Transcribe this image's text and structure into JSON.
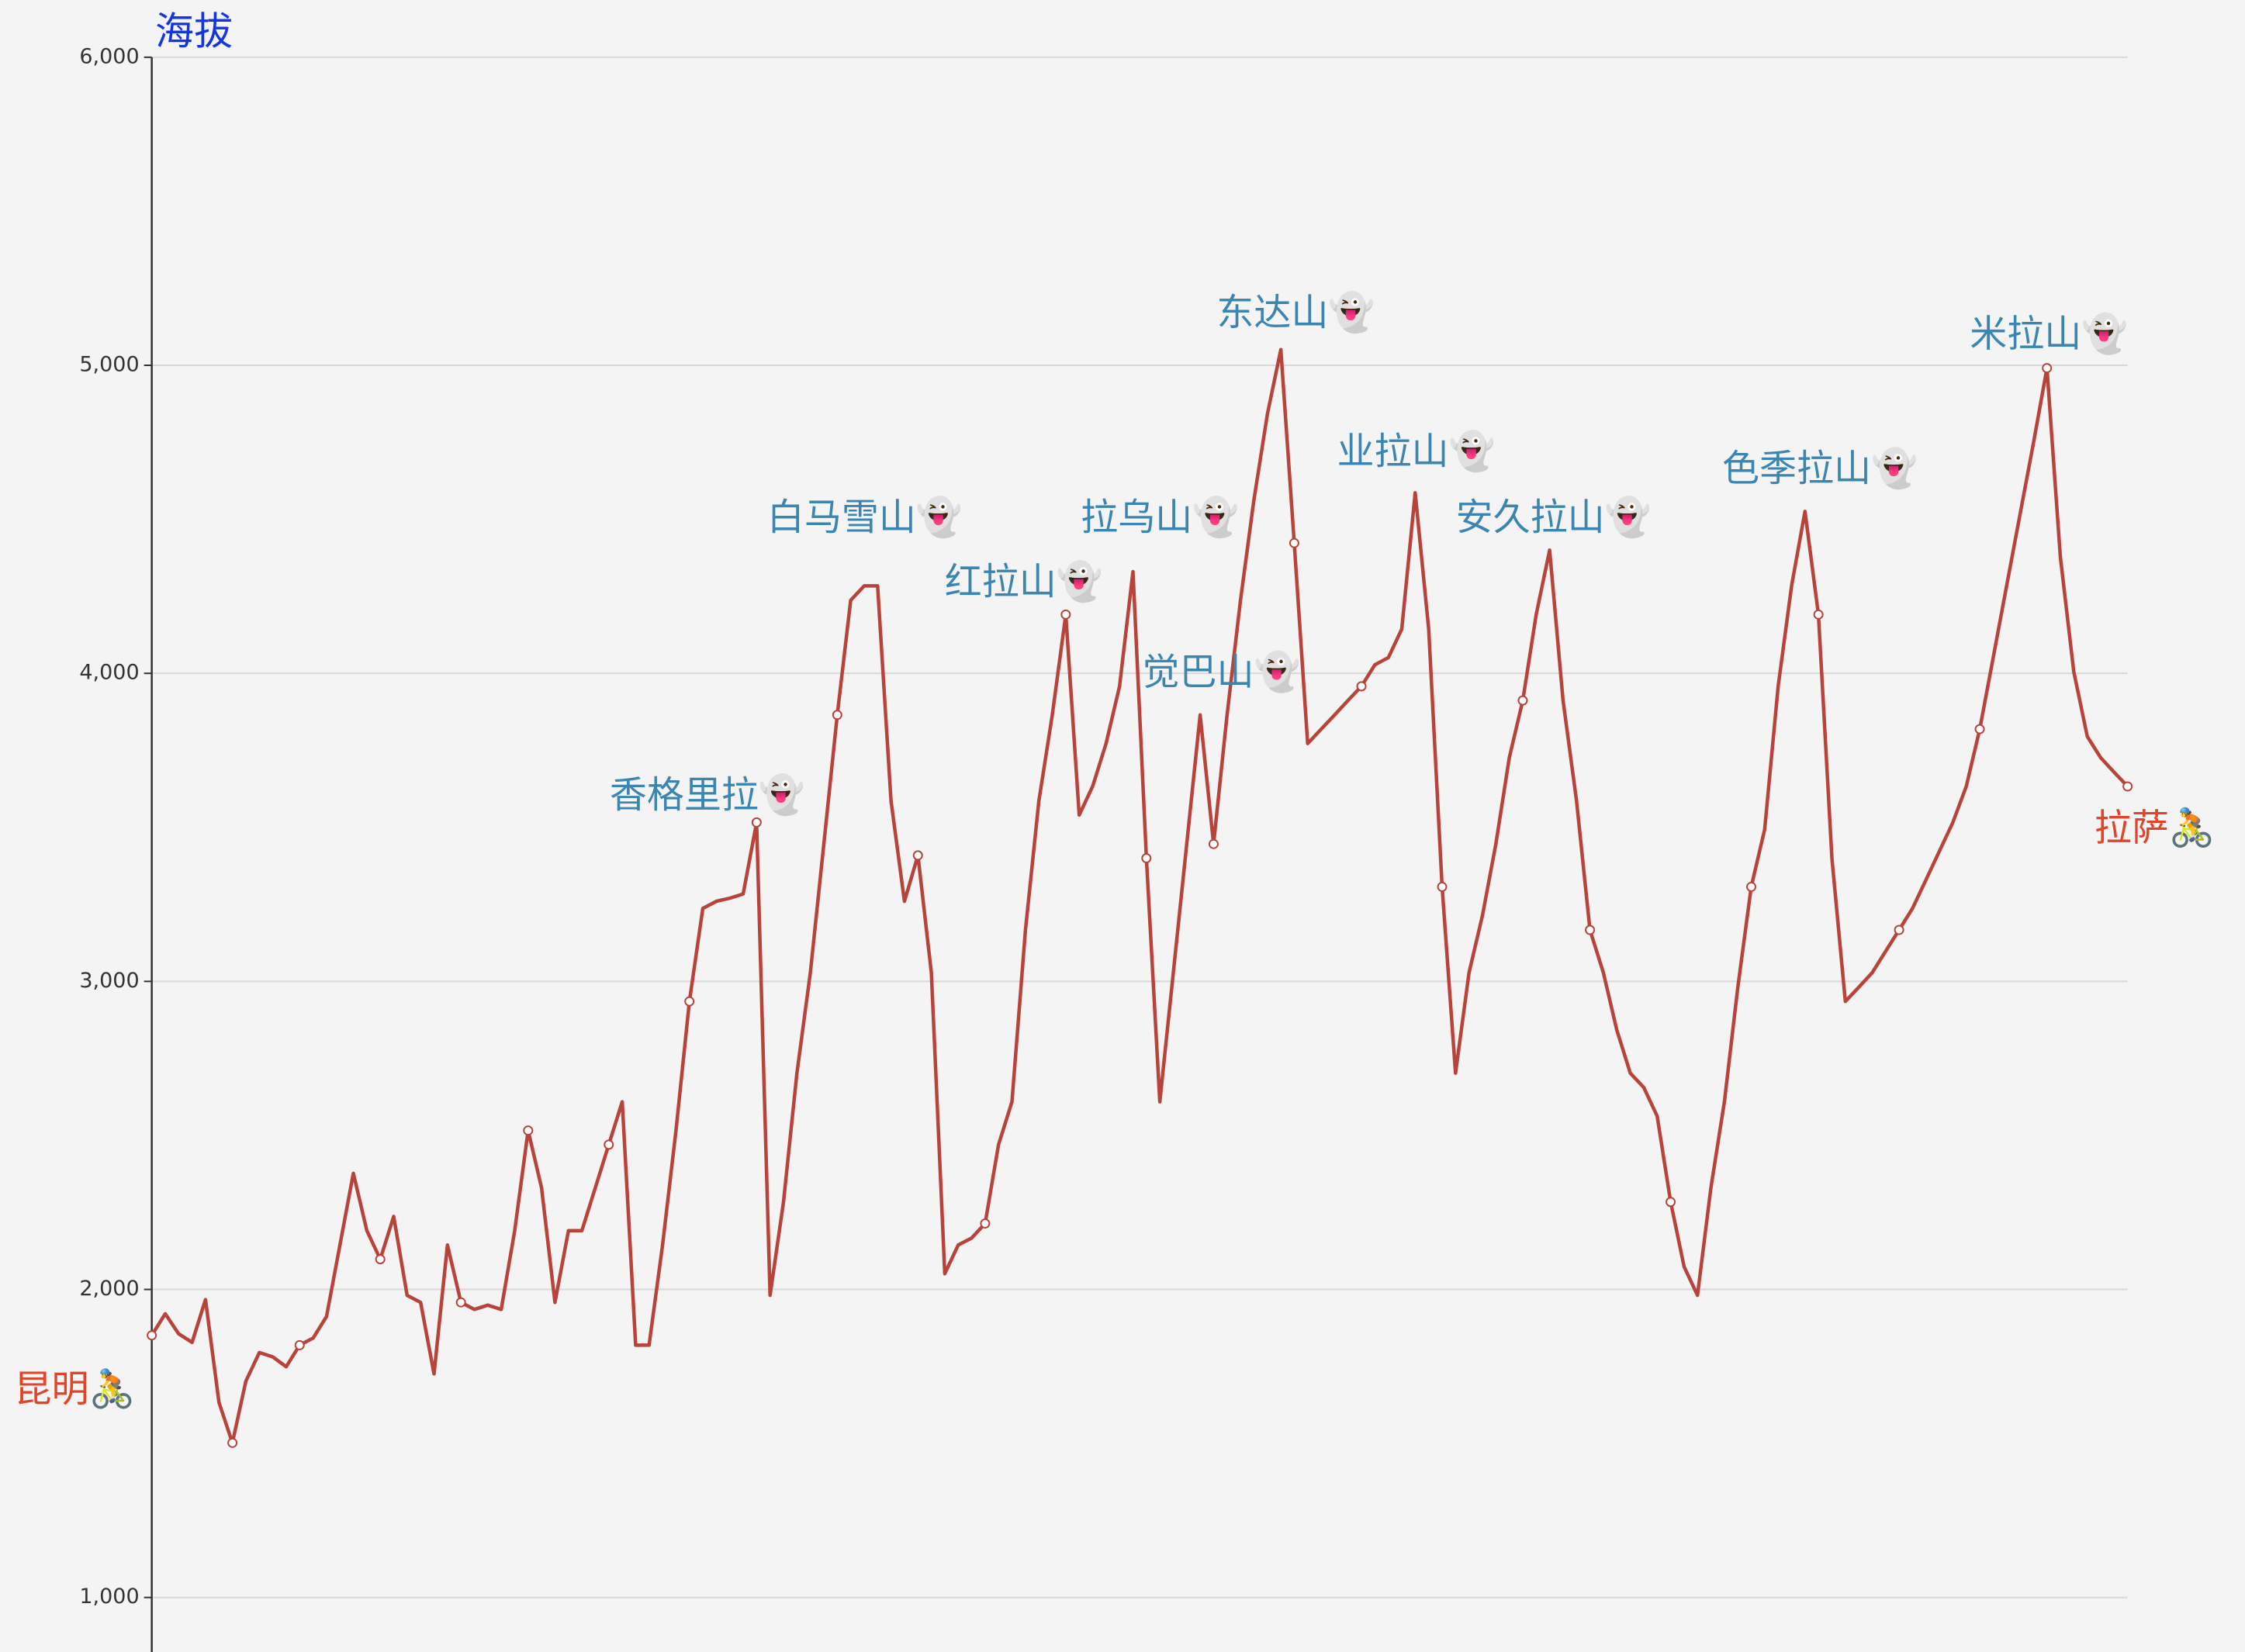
{
  "chart_data": {
    "type": "line",
    "y_label": "海拔",
    "color": "#b8433b",
    "ylim": [
      823,
      6000
    ],
    "yticks": [
      {
        "value": 1000,
        "label": "1,000"
      },
      {
        "value": 2000,
        "label": "2,000"
      },
      {
        "value": 3000,
        "label": "3,000"
      },
      {
        "value": 4000,
        "label": "4,000"
      },
      {
        "value": 5000,
        "label": "5,000"
      },
      {
        "value": 6000,
        "label": "6,000"
      }
    ],
    "grid": true,
    "values": [
      1851,
      1921,
      1856,
      1828,
      1967,
      1633,
      1502,
      1702,
      1795,
      1781,
      1749,
      1819,
      1842,
      1912,
      2144,
      2377,
      2191,
      2098,
      2237,
      1981,
      1958,
      1726,
      2144,
      1958,
      1935,
      1949,
      1935,
      2191,
      2516,
      2330,
      1958,
      2191,
      2191,
      2330,
      2470,
      2609,
      1819,
      1819,
      2144,
      2516,
      2935,
      3237,
      3260,
      3270,
      3284,
      3516,
      1981,
      2284,
      2702,
      3028,
      3446,
      3865,
      4237,
      4284,
      4284,
      3586,
      3260,
      3409,
      3028,
      2051,
      2144,
      2167,
      2214,
      2470,
      2609,
      3167,
      3586,
      3865,
      4191,
      3540,
      3633,
      3772,
      3958,
      4330,
      3400,
      2609,
      3028,
      3446,
      3865,
      3446,
      3865,
      4237,
      4563,
      4842,
      5051,
      4423,
      3772,
      3819,
      3865,
      3912,
      3958,
      4028,
      4051,
      4144,
      4586,
      4144,
      3307,
      2702,
      3028,
      3214,
      3446,
      3726,
      3912,
      4191,
      4400,
      3912,
      3586,
      3167,
      3028,
      2842,
      2702,
      2656,
      2563,
      2284,
      2074,
      1981,
      2330,
      2609,
      2981,
      3307,
      3493,
      3958,
      4284,
      4526,
      4191,
      3400,
      2935,
      2981,
      3028,
      3098,
      3167,
      3237,
      3330,
      3423,
      3516,
      3633,
      3819,
      4051,
      4284,
      4516,
      4749,
      4991,
      4377,
      4005,
      3795,
      3726,
      3679,
      3633
    ],
    "annotations": [
      "昆明🚴",
      "香格里拉👻",
      "白马雪山👻",
      "红拉山👻",
      "拉乌山👻",
      "觉巴山👻",
      "东达山👻",
      "业拉山👻",
      "安久拉山👻",
      "色季拉山👻",
      "米拉山👻",
      "拉萨🚴"
    ]
  }
}
